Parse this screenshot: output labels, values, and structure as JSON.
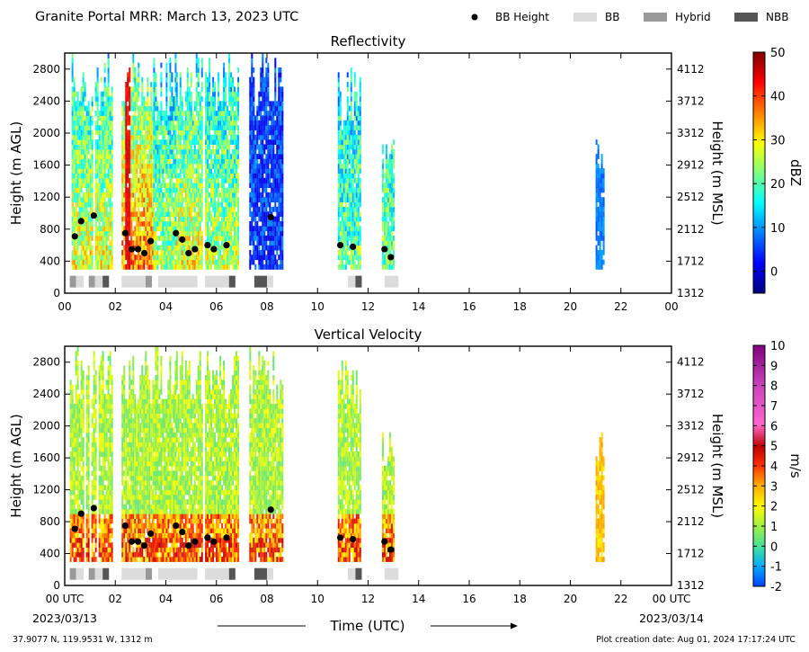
{
  "header": {
    "title": "Granite Portal MRR:  March 13, 2023 UTC",
    "legend": [
      {
        "label": "BB Height",
        "kind": "dot",
        "color": "#000000"
      },
      {
        "label": "BB",
        "kind": "rect",
        "color": "#dcdcdc"
      },
      {
        "label": "Hybrid",
        "kind": "rect",
        "color": "#999999"
      },
      {
        "label": "NBB",
        "kind": "rect",
        "color": "#555555"
      }
    ]
  },
  "footer": {
    "location": "37.9077 N, 119.9531 W, 1312 m",
    "creation": "Plot creation date: Aug 01, 2024 17:17:24 UTC",
    "xlabel": "Time (UTC)",
    "start_date": "2023/03/13",
    "end_date": "2023/03/14"
  },
  "chart_data": [
    {
      "type": "heatmap",
      "title": "Reflectivity",
      "xlabel": "",
      "ylabel": "Height (m AGL)",
      "ylabel_right": "Height (m MSL)",
      "x_ticks": [
        "00",
        "02",
        "04",
        "06",
        "08",
        "10",
        "12",
        "14",
        "16",
        "18",
        "20",
        "22",
        "00"
      ],
      "xlim": [
        0,
        24
      ],
      "y_ticks": [
        0,
        400,
        800,
        1200,
        1600,
        2000,
        2400,
        2800
      ],
      "y_ticks_right": [
        "1312",
        "1712",
        "2112",
        "2512",
        "2912",
        "3312",
        "3712",
        "4112"
      ],
      "ylim": [
        0,
        3000
      ],
      "colorbar": {
        "label": "dBZ",
        "min": -5,
        "max": 50,
        "ticks": [
          0,
          10,
          20,
          30,
          40,
          50
        ],
        "colormap": "jet"
      },
      "bb_height_points": [
        [
          0.4,
          710
        ],
        [
          0.65,
          900
        ],
        [
          1.15,
          970
        ],
        [
          2.4,
          750
        ],
        [
          2.65,
          550
        ],
        [
          2.9,
          550
        ],
        [
          3.15,
          500
        ],
        [
          3.4,
          650
        ],
        [
          4.4,
          750
        ],
        [
          4.65,
          670
        ],
        [
          4.9,
          500
        ],
        [
          5.15,
          550
        ],
        [
          5.65,
          600
        ],
        [
          5.9,
          550
        ],
        [
          6.4,
          600
        ],
        [
          8.15,
          950
        ],
        [
          10.9,
          600
        ],
        [
          11.4,
          580
        ],
        [
          12.65,
          550
        ],
        [
          12.9,
          450
        ]
      ],
      "bb_type_bars": [
        {
          "start": 0.2,
          "end": 0.45,
          "type": "Hybrid"
        },
        {
          "start": 0.45,
          "end": 0.75,
          "type": "BB"
        },
        {
          "start": 0.95,
          "end": 1.2,
          "type": "Hybrid"
        },
        {
          "start": 1.2,
          "end": 1.5,
          "type": "BB"
        },
        {
          "start": 1.5,
          "end": 1.75,
          "type": "NBB"
        },
        {
          "start": 2.25,
          "end": 3.2,
          "type": "BB"
        },
        {
          "start": 3.2,
          "end": 3.45,
          "type": "Hybrid"
        },
        {
          "start": 3.7,
          "end": 5.25,
          "type": "BB"
        },
        {
          "start": 5.55,
          "end": 6.5,
          "type": "BB"
        },
        {
          "start": 6.5,
          "end": 6.75,
          "type": "NBB"
        },
        {
          "start": 7.5,
          "end": 8.0,
          "type": "NBB"
        },
        {
          "start": 8.0,
          "end": 8.25,
          "type": "BB"
        },
        {
          "start": 11.2,
          "end": 11.5,
          "type": "BB"
        },
        {
          "start": 11.5,
          "end": 11.75,
          "type": "NBB"
        },
        {
          "start": 12.65,
          "end": 13.2,
          "type": "BB"
        }
      ]
    },
    {
      "type": "heatmap",
      "title": "Vertical Velocity",
      "xlabel": "Time (UTC)",
      "ylabel": "Height (m AGL)",
      "ylabel_right": "Height (m MSL)",
      "x_ticks": [
        "00 UTC",
        "02",
        "04",
        "06",
        "08",
        "10",
        "12",
        "14",
        "16",
        "18",
        "20",
        "22",
        "00 UTC"
      ],
      "xlim": [
        0,
        24
      ],
      "y_ticks": [
        0,
        400,
        800,
        1200,
        1600,
        2000,
        2400,
        2800
      ],
      "y_ticks_right": [
        "1312",
        "1712",
        "2112",
        "2512",
        "2912",
        "3312",
        "3712",
        "4112"
      ],
      "ylim": [
        0,
        3000
      ],
      "colorbar": {
        "label": "m/s",
        "min": -2,
        "max": 10,
        "ticks": [
          -2,
          -1,
          0,
          1,
          2,
          3,
          4,
          5,
          6,
          7,
          8,
          9,
          10
        ],
        "colormap": "velocity"
      },
      "bb_height_points": [
        [
          0.4,
          710
        ],
        [
          0.65,
          900
        ],
        [
          1.15,
          970
        ],
        [
          2.4,
          750
        ],
        [
          2.65,
          550
        ],
        [
          2.9,
          550
        ],
        [
          3.15,
          500
        ],
        [
          3.4,
          650
        ],
        [
          4.4,
          750
        ],
        [
          4.65,
          670
        ],
        [
          4.9,
          500
        ],
        [
          5.15,
          550
        ],
        [
          5.65,
          600
        ],
        [
          5.9,
          550
        ],
        [
          6.4,
          600
        ],
        [
          8.15,
          950
        ],
        [
          10.9,
          600
        ],
        [
          11.4,
          580
        ],
        [
          12.65,
          550
        ],
        [
          12.9,
          450
        ]
      ],
      "bb_type_bars": [
        {
          "start": 0.2,
          "end": 0.45,
          "type": "Hybrid"
        },
        {
          "start": 0.45,
          "end": 0.75,
          "type": "BB"
        },
        {
          "start": 0.95,
          "end": 1.2,
          "type": "Hybrid"
        },
        {
          "start": 1.2,
          "end": 1.5,
          "type": "BB"
        },
        {
          "start": 1.5,
          "end": 1.75,
          "type": "NBB"
        },
        {
          "start": 2.25,
          "end": 3.2,
          "type": "BB"
        },
        {
          "start": 3.2,
          "end": 3.45,
          "type": "Hybrid"
        },
        {
          "start": 3.7,
          "end": 5.25,
          "type": "BB"
        },
        {
          "start": 5.55,
          "end": 6.5,
          "type": "BB"
        },
        {
          "start": 6.5,
          "end": 6.75,
          "type": "NBB"
        },
        {
          "start": 7.5,
          "end": 8.0,
          "type": "NBB"
        },
        {
          "start": 8.0,
          "end": 8.25,
          "type": "BB"
        },
        {
          "start": 11.2,
          "end": 11.5,
          "type": "BB"
        },
        {
          "start": 11.5,
          "end": 11.75,
          "type": "NBB"
        },
        {
          "start": 12.65,
          "end": 13.2,
          "type": "BB"
        }
      ]
    }
  ]
}
